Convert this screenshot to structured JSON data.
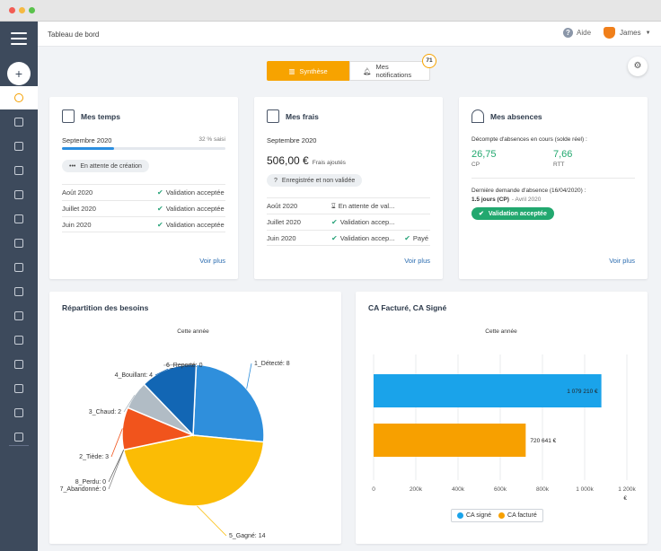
{
  "header": {
    "title": "Tableau de bord",
    "help_label": "Aide",
    "user_name": "James"
  },
  "tabs": {
    "synthese_label": "Synthèse",
    "notifications_label": "Mes notifications",
    "notifications_count": "71"
  },
  "mes_temps": {
    "title": "Mes temps",
    "month": "Septembre 2020",
    "progress_text": "32 % saisi",
    "progress_percent": 32,
    "status_pill": "En attente de création",
    "rows": [
      {
        "month": "Août 2020",
        "status": "Validation acceptée"
      },
      {
        "month": "Juillet 2020",
        "status": "Validation acceptée"
      },
      {
        "month": "Juin 2020",
        "status": "Validation acceptée"
      }
    ],
    "voir_plus": "Voir plus"
  },
  "mes_frais": {
    "title": "Mes frais",
    "month": "Septembre 2020",
    "amount": "506,00 €",
    "amount_caption": "Frais ajoutés",
    "status_pill": "Enregistrée et non validée",
    "rows": [
      {
        "month": "Août 2020",
        "status": "En attente de val...",
        "extra": ""
      },
      {
        "month": "Juillet 2020",
        "status": "Validation accep...",
        "extra": ""
      },
      {
        "month": "Juin 2020",
        "status": "Validation accep...",
        "extra": "Payé"
      }
    ],
    "voir_plus": "Voir plus"
  },
  "mes_absences": {
    "title": "Mes absences",
    "decompte_label": "Décompte d'absences en cours (solde réel) :",
    "cp_value": "26,75",
    "cp_label": "CP",
    "rtt_value": "7,66",
    "rtt_label": "RTT",
    "derniere_label": "Dernière demande d'absence (16/04/2020) :",
    "derniere_days": "1.5 jours (CP)",
    "derniere_month": "- Avril 2020",
    "status_pill": "Validation acceptée",
    "voir_plus": "Voir plus"
  },
  "colors": {
    "accent": "#f7a300",
    "link": "#2b6cb0",
    "success": "#22a86f",
    "sidebar": "#3d4a5c"
  },
  "chart_data": [
    {
      "type": "pie",
      "title": "Répartition des besoins",
      "subtitle": "Cette année",
      "labels": [
        "1_Détecté: 8",
        "5_Gagné: 14",
        "7_Abandonné: 0",
        "8_Perdu: 0",
        "2_Tiède: 3",
        "3_Chaud: 2",
        "4_Bouillant: 4",
        "6_Reporté: 0"
      ],
      "categories": [
        "1_Détecté",
        "5_Gagné",
        "7_Abandonné",
        "8_Perdu",
        "2_Tiède",
        "3_Chaud",
        "4_Bouillant",
        "6_Reporté"
      ],
      "values": [
        8,
        14,
        0,
        0,
        3,
        2,
        4,
        0
      ],
      "colors": [
        "#2f8fdc",
        "#fbbc05",
        "#888888",
        "#666666",
        "#f1541c",
        "#b1bcc5",
        "#1266b4",
        "#999999"
      ]
    },
    {
      "type": "bar",
      "orientation": "horizontal",
      "title": "CA Facturé, CA Signé",
      "subtitle": "Cette année",
      "series": [
        {
          "name": "CA signé",
          "value": 1079210,
          "label": "1 079 210 €",
          "color": "#1aa3ea"
        },
        {
          "name": "CA facturé",
          "value": 720641,
          "label": "720 641 €",
          "color": "#f7a000"
        }
      ],
      "xlim": [
        0,
        1200000
      ],
      "ticks": [
        "0",
        "200k",
        "400k",
        "600k",
        "800k",
        "1 000k",
        "1 200k"
      ],
      "tick_values": [
        0,
        200000,
        400000,
        600000,
        800000,
        1000000,
        1200000
      ],
      "unit_label": "€",
      "legend": [
        "CA signé",
        "CA facturé"
      ]
    }
  ]
}
